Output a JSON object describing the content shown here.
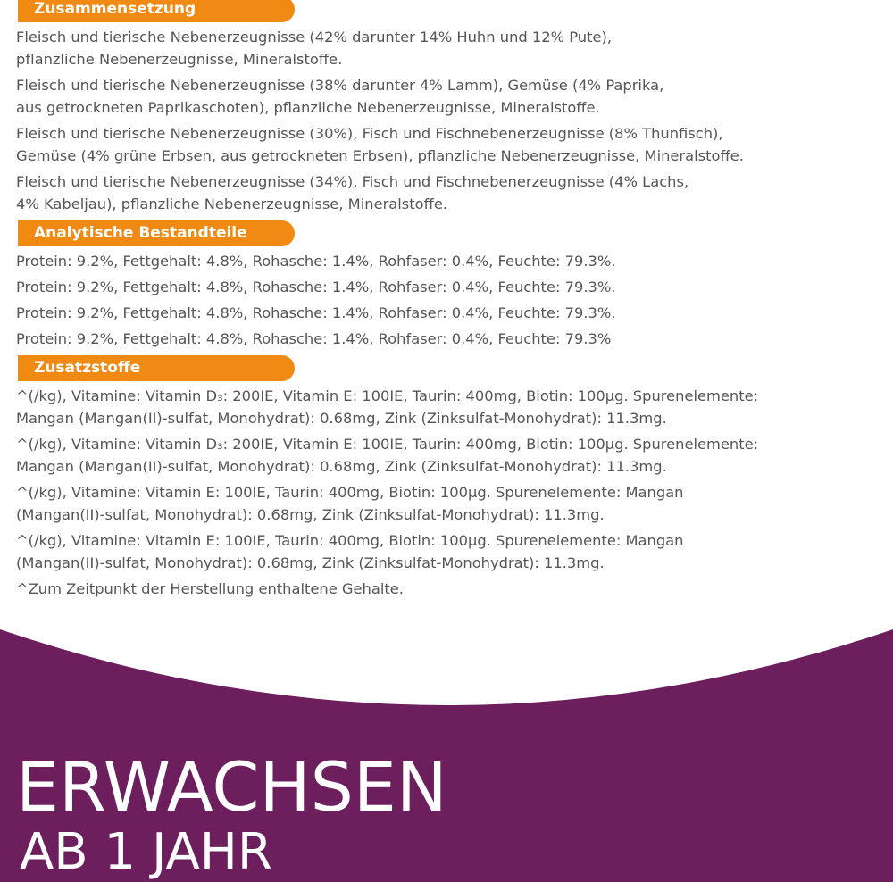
{
  "sections": [
    {
      "title": "Zusammensetzung",
      "paragraphs": [
        [
          "Fleisch und tierische Nebenerzeugnisse (42% darunter 14% Huhn und 12% Pute),",
          "pflanzliche Nebenerzeugnisse, Mineralstoffe."
        ],
        [
          "Fleisch und tierische Nebenerzeugnisse (38% darunter 4% Lamm), Gemüse (4% Paprika,",
          "aus getrockneten Paprikaschoten), pflanzliche Nebenerzeugnisse, Mineralstoffe."
        ],
        [
          "Fleisch und tierische Nebenerzeugnisse (30%), Fisch und Fischnebenerzeugnisse (8% Thunfisch),",
          "Gemüse (4% grüne Erbsen, aus getrockneten Erbsen), pflanzliche Nebenerzeugnisse, Mineralstoffe."
        ],
        [
          "Fleisch und tierische Nebenerzeugnisse (34%), Fisch und Fischnebenerzeugnisse (4% Lachs,",
          "4% Kabeljau), pflanzliche Nebenerzeugnisse, Mineralstoffe."
        ]
      ]
    },
    {
      "title": "Analytische Bestandteile",
      "paragraphs": [
        [
          "Protein: 9.2%, Fettgehalt: 4.8%, Rohasche: 1.4%, Rohfaser: 0.4%, Feuchte: 79.3%."
        ],
        [
          "Protein: 9.2%, Fettgehalt: 4.8%, Rohasche: 1.4%, Rohfaser: 0.4%, Feuchte: 79.3%."
        ],
        [
          "Protein: 9.2%, Fettgehalt: 4.8%, Rohasche: 1.4%, Rohfaser: 0.4%, Feuchte: 79.3%."
        ],
        [
          "Protein: 9.2%, Fettgehalt: 4.8%, Rohasche: 1.4%, Rohfaser: 0.4%, Feuchte: 79.3%"
        ]
      ]
    },
    {
      "title": "Zusatzstoffe",
      "paragraphs": [
        [
          "^(/kg), Vitamine: Vitamin D₃: 200IE, Vitamin E: 100IE, Taurin: 400mg, Biotin: 100µg. Spurenelemente:",
          "Mangan (Mangan(II)-sulfat, Monohydrat): 0.68mg, Zink (Zinksulfat-Monohydrat): 11.3mg."
        ],
        [
          "^(/kg), Vitamine: Vitamin D₃: 200IE, Vitamin E: 100IE, Taurin: 400mg, Biotin: 100µg. Spurenelemente:",
          "Mangan (Mangan(II)-sulfat, Monohydrat): 0.68mg, Zink (Zinksulfat-Monohydrat): 11.3mg."
        ],
        [
          "^(/kg), Vitamine: Vitamin E: 100IE, Taurin: 400mg, Biotin: 100µg. Spurenelemente: Mangan",
          "(Mangan(II)-sulfat, Monohydrat): 0.68mg, Zink (Zinksulfat-Monohydrat): 11.3mg."
        ],
        [
          "^(/kg), Vitamine: Vitamin E: 100IE, Taurin: 400mg, Biotin: 100µg. Spurenelemente: Mangan",
          "(Mangan(II)-sulfat, Monohydrat): 0.68mg, Zink (Zinksulfat-Monohydrat): 11.3mg."
        ],
        [
          "^Zum Zeitpunkt der Herstellung enthaltene Gehalte."
        ]
      ]
    }
  ],
  "banner": {
    "line1": "ERWACHSEN",
    "line2": "AB 1 JAHR"
  }
}
